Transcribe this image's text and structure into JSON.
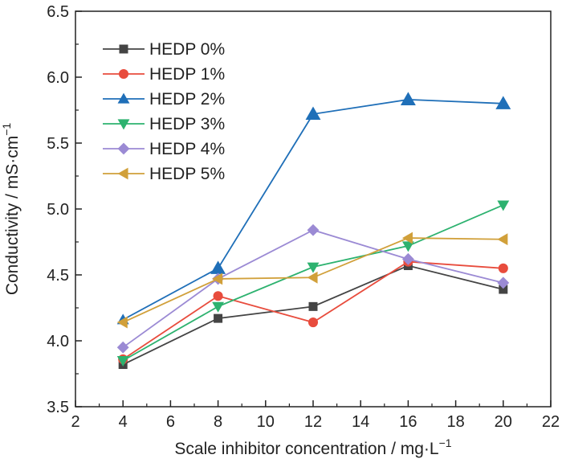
{
  "chart_data": {
    "type": "line",
    "title": "",
    "xlabel": "Scale inhibitor concentration / mg·L",
    "xlabel_sup": "−1",
    "ylabel": "Conductivity / mS·cm",
    "ylabel_sup": "−1",
    "xlim": [
      2,
      22
    ],
    "ylim": [
      3.5,
      6.5
    ],
    "x_ticks": [
      2,
      4,
      6,
      8,
      10,
      12,
      14,
      16,
      18,
      20,
      22
    ],
    "y_ticks": [
      "3.5",
      "4.0",
      "4.5",
      "5.0",
      "5.5",
      "6.0",
      "6.5"
    ],
    "x": [
      4,
      8,
      12,
      16,
      20
    ],
    "grid": false,
    "legend_position": "top-left",
    "series": [
      {
        "name": "HEDP 0%",
        "color": "#444444",
        "marker": "square",
        "values": [
          3.82,
          4.17,
          4.26,
          4.57,
          4.39
        ]
      },
      {
        "name": "HEDP 1%",
        "color": "#e84c3d",
        "marker": "circle",
        "values": [
          3.86,
          4.34,
          4.14,
          4.6,
          4.55
        ]
      },
      {
        "name": "HEDP 2%",
        "color": "#1f6fb8",
        "marker": "triangle-up",
        "values": [
          4.16,
          4.55,
          5.72,
          5.83,
          5.8
        ]
      },
      {
        "name": "HEDP 3%",
        "color": "#2db26f",
        "marker": "triangle-down",
        "values": [
          3.85,
          4.26,
          4.56,
          4.72,
          5.03
        ]
      },
      {
        "name": "HEDP 4%",
        "color": "#9b8ad4",
        "marker": "diamond",
        "values": [
          3.95,
          4.47,
          4.84,
          4.62,
          4.44
        ]
      },
      {
        "name": "HEDP 5%",
        "color": "#d1a03a",
        "marker": "triangle-left",
        "values": [
          4.14,
          4.47,
          4.48,
          4.78,
          4.77
        ]
      }
    ]
  }
}
